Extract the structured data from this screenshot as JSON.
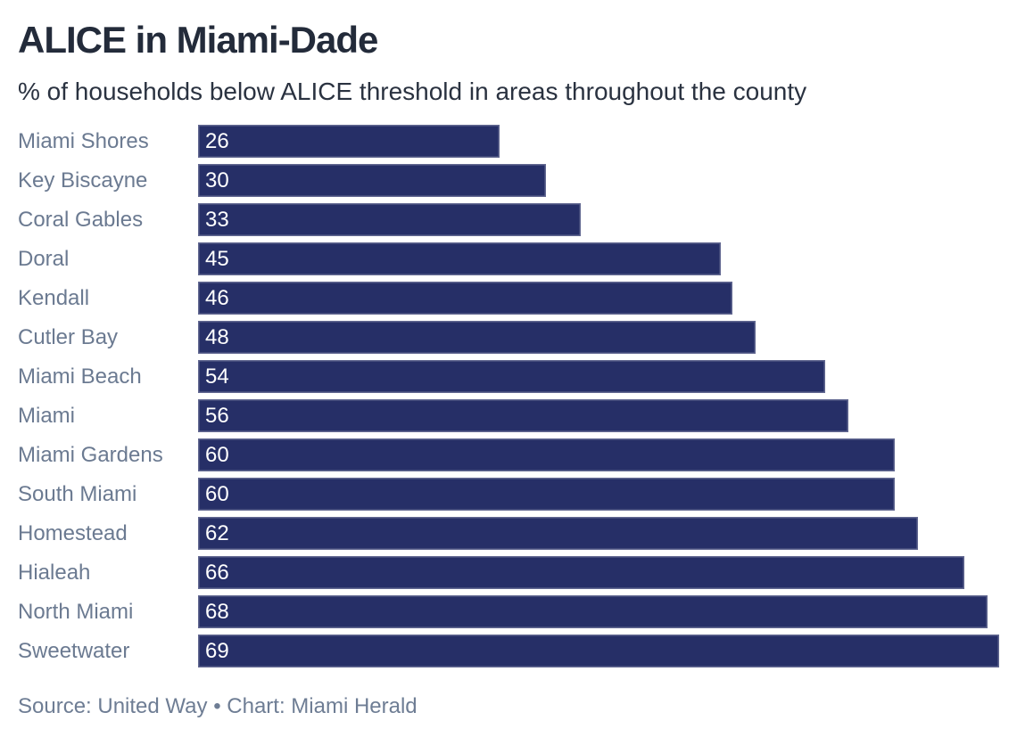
{
  "header": {
    "title": "ALICE in Miami-Dade",
    "subtitle": "% of households below ALICE threshold in areas throughout the county"
  },
  "footer": {
    "source_line": "Source: United Way • Chart: Miami Herald"
  },
  "colors": {
    "bar_fill": "#262f67",
    "value_text": "#ffffff",
    "category_label": "#6b7a91",
    "title_text": "#232b3a",
    "source_text": "#6e7d94",
    "background": "#ffffff"
  },
  "chart_data": {
    "type": "bar",
    "orientation": "horizontal",
    "title": "ALICE in Miami-Dade",
    "subtitle": "% of households below ALICE threshold in areas throughout the county",
    "categories": [
      "Miami Shores",
      "Key Biscayne",
      "Coral Gables",
      "Doral",
      "Kendall",
      "Cutler Bay",
      "Miami Beach",
      "Miami",
      "Miami Gardens",
      "South Miami",
      "Homestead",
      "Hialeah",
      "North Miami",
      "Sweetwater"
    ],
    "values": [
      26,
      30,
      33,
      45,
      46,
      48,
      54,
      56,
      60,
      60,
      62,
      66,
      68,
      69
    ],
    "xlabel": "",
    "ylabel": "",
    "xlim": [
      0,
      69
    ],
    "grid": false,
    "legend": false,
    "value_labels": "inside-left",
    "sort_order": "ascending"
  }
}
